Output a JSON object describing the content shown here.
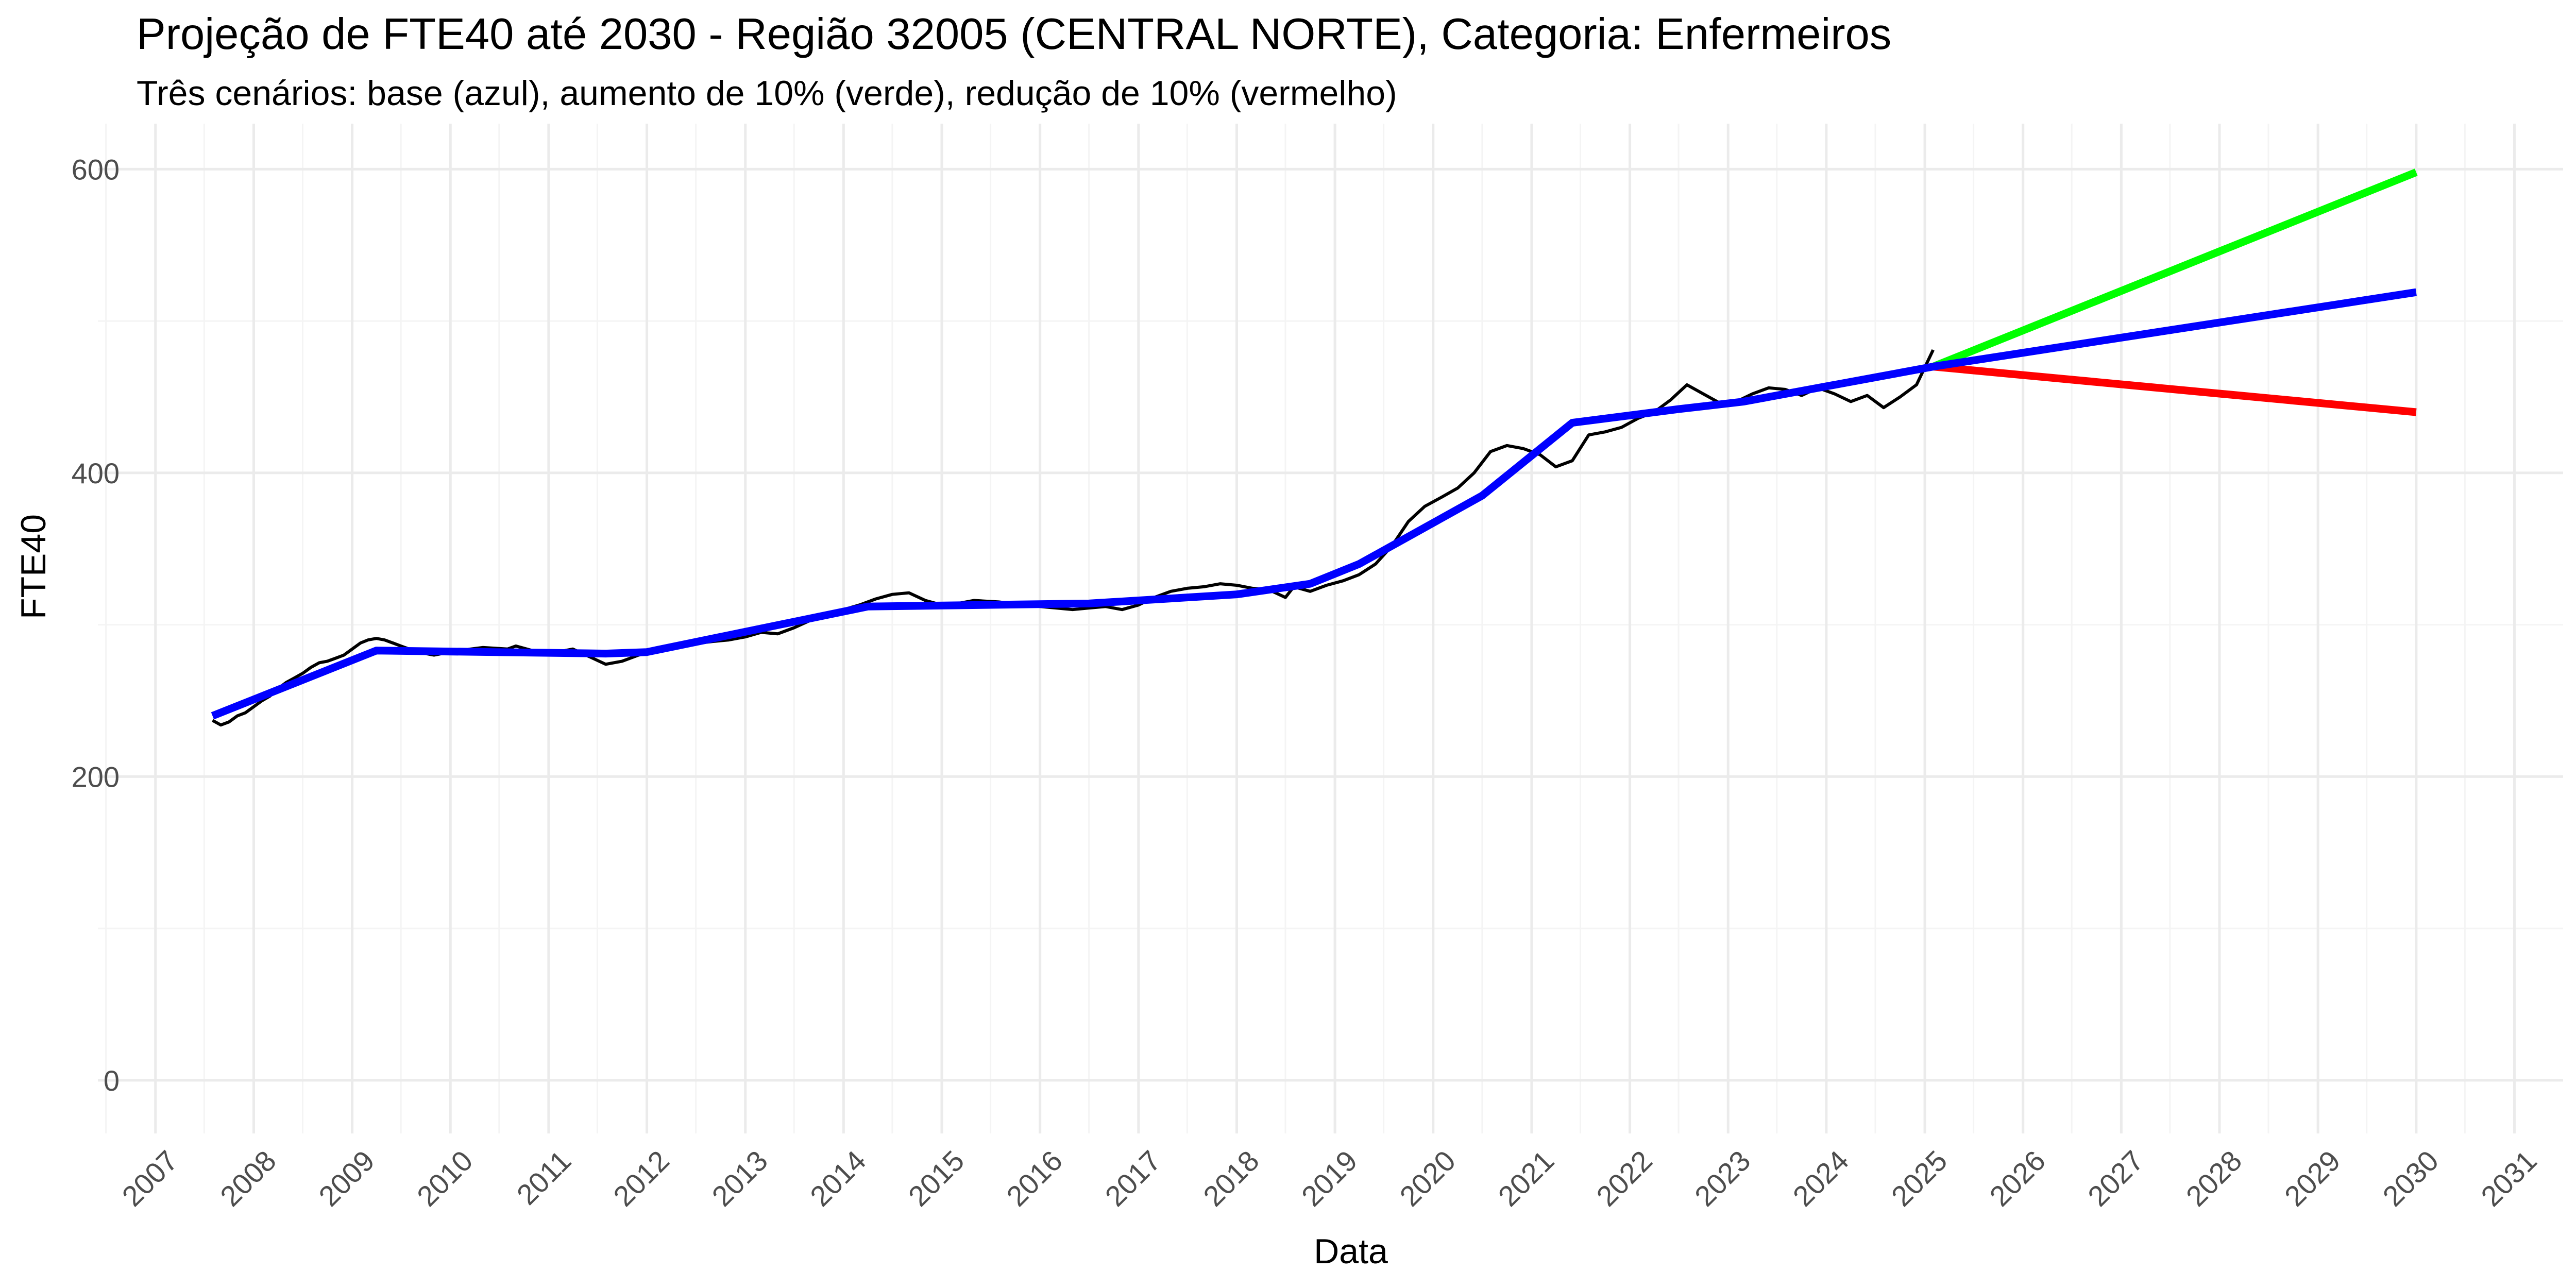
{
  "chart_data": {
    "type": "line",
    "title": "Projeção de FTE40 até 2030 - Região 32005 (CENTRAL NORTE), Categoria: Enfermeiros",
    "subtitle": "Três cenários: base (azul), aumento de 10% (verde), redução de 10% (vermelho)",
    "xlabel": "Data",
    "ylabel": "FTE40",
    "x_type": "time",
    "xlim": [
      "2006-06-01",
      "2031-07-01"
    ],
    "ylim": [
      -35,
      630
    ],
    "x_ticks": [
      "2007",
      "2008",
      "2009",
      "2010",
      "2011",
      "2012",
      "2013",
      "2014",
      "2015",
      "2016",
      "2017",
      "2018",
      "2019",
      "2020",
      "2021",
      "2022",
      "2023",
      "2024",
      "2025",
      "2026",
      "2027",
      "2028",
      "2029",
      "2030",
      "2031"
    ],
    "y_ticks": [
      0,
      200,
      400,
      600
    ],
    "grid": true,
    "legend": "none",
    "colors": {
      "observed": "#000000",
      "base": "#0000ff",
      "increase": "#00ff00",
      "decrease": "#ff0000"
    },
    "series": [
      {
        "key": "observed",
        "x": [
          "2007-08-01",
          "2007-09-01",
          "2007-10-01",
          "2007-11-01",
          "2007-12-01",
          "2008-01-01",
          "2008-02-01",
          "2008-03-01",
          "2008-04-01",
          "2008-05-01",
          "2008-06-01",
          "2008-07-01",
          "2008-08-01",
          "2008-09-01",
          "2008-10-01",
          "2008-11-01",
          "2008-12-01",
          "2009-01-01",
          "2009-02-01",
          "2009-03-01",
          "2009-04-01",
          "2009-05-01",
          "2009-06-01",
          "2009-07-01",
          "2009-08-01",
          "2009-09-01",
          "2009-10-01",
          "2009-11-01",
          "2009-12-01",
          "2010-02-01",
          "2010-05-01",
          "2010-08-01",
          "2010-09-01",
          "2010-11-01",
          "2011-02-01",
          "2011-04-01",
          "2011-06-01",
          "2011-08-01",
          "2011-10-01",
          "2011-12-01",
          "2012-03-01",
          "2012-06-01",
          "2012-09-01",
          "2012-11-01",
          "2013-01-01",
          "2013-03-01",
          "2013-05-01",
          "2013-07-01",
          "2013-09-01",
          "2013-11-01",
          "2014-01-01",
          "2014-03-01",
          "2014-05-01",
          "2014-07-01",
          "2014-09-01",
          "2014-11-01",
          "2015-01-01",
          "2015-03-01",
          "2015-05-01",
          "2015-08-01",
          "2015-11-01",
          "2016-01-01",
          "2016-03-01",
          "2016-05-01",
          "2016-07-01",
          "2016-09-01",
          "2016-11-01",
          "2017-01-01",
          "2017-03-01",
          "2017-05-01",
          "2017-07-01",
          "2017-09-01",
          "2017-11-01",
          "2018-01-01",
          "2018-03-01",
          "2018-05-01",
          "2018-07-01",
          "2018-08-01",
          "2018-10-01",
          "2018-12-01",
          "2019-02-01",
          "2019-04-01",
          "2019-06-01",
          "2019-08-01",
          "2019-10-01",
          "2019-12-01",
          "2020-02-01",
          "2020-04-01",
          "2020-06-01",
          "2020-08-01",
          "2020-10-01",
          "2020-12-01",
          "2021-02-01",
          "2021-04-01",
          "2021-06-01",
          "2021-08-01",
          "2021-10-01",
          "2021-12-01",
          "2022-02-01",
          "2022-04-01",
          "2022-06-01",
          "2022-08-01",
          "2022-10-01",
          "2022-12-01",
          "2023-02-01",
          "2023-04-01",
          "2023-06-01",
          "2023-08-01",
          "2023-10-01",
          "2023-12-01",
          "2024-02-01",
          "2024-04-01",
          "2024-06-01",
          "2024-08-01",
          "2024-10-01",
          "2024-12-01",
          "2025-02-01"
        ],
        "y": [
          237,
          234,
          236,
          240,
          242,
          246,
          250,
          253,
          258,
          262,
          265,
          268,
          272,
          275,
          276,
          278,
          280,
          284,
          288,
          290,
          291,
          290,
          288,
          286,
          284,
          282,
          281,
          280,
          281,
          283,
          285,
          284,
          286,
          283,
          282,
          284,
          279,
          274,
          276,
          280,
          284,
          287,
          289,
          290,
          292,
          295,
          294,
          298,
          303,
          306,
          310,
          313,
          317,
          320,
          321,
          316,
          313,
          314,
          316,
          315,
          313,
          312,
          311,
          310,
          311,
          312,
          310,
          313,
          318,
          322,
          324,
          325,
          327,
          326,
          324,
          323,
          318,
          325,
          322,
          326,
          329,
          333,
          340,
          352,
          368,
          378,
          384,
          390,
          400,
          414,
          418,
          416,
          412,
          404,
          408,
          425,
          427,
          430,
          436,
          440,
          448,
          458,
          452,
          446,
          447,
          452,
          456,
          455,
          451,
          456,
          452,
          447,
          451,
          443,
          450,
          458,
          481
        ]
      },
      {
        "key": "base",
        "x": [
          "2007-08-01",
          "2009-04-01",
          "2011-08-01",
          "2012-01-01",
          "2014-04-01",
          "2016-07-01",
          "2018-01-01",
          "2018-10-01",
          "2019-04-01",
          "2020-07-01",
          "2021-06-01",
          "2022-07-01",
          "2023-03-01",
          "2025-02-01",
          "2030-01-01"
        ],
        "y": [
          240,
          283,
          281,
          282,
          312,
          314,
          320,
          327,
          340,
          385,
          433,
          442,
          447,
          470,
          519
        ]
      },
      {
        "key": "increase",
        "x": [
          "2025-02-01",
          "2030-01-01"
        ],
        "y": [
          470,
          598
        ]
      },
      {
        "key": "decrease",
        "x": [
          "2025-02-01",
          "2030-01-01"
        ],
        "y": [
          470,
          440
        ]
      }
    ]
  }
}
